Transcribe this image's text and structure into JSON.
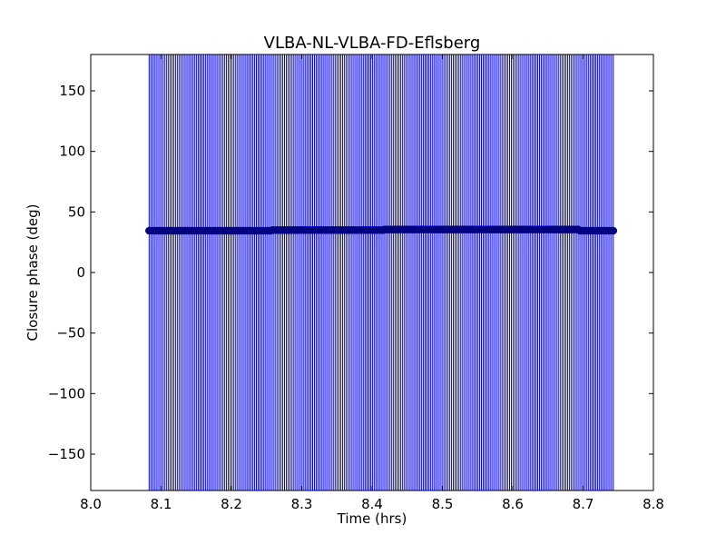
{
  "chart_data": {
    "type": "scatter",
    "title": "VLBA-NL-VLBA-FD-Eflsberg",
    "xlabel": "Time (hrs)",
    "ylabel": "Closure phase (deg)",
    "xlim": [
      8.0,
      8.8
    ],
    "ylim": [
      -180,
      180
    ],
    "x_ticks": [
      8.0,
      8.1,
      8.2,
      8.3,
      8.4,
      8.5,
      8.6,
      8.7,
      8.8
    ],
    "x_tick_labels": [
      "8.0",
      "8.1",
      "8.2",
      "8.3",
      "8.4",
      "8.5",
      "8.6",
      "8.7",
      "8.8"
    ],
    "y_ticks": [
      150,
      100,
      50,
      0,
      -50,
      -100,
      -150
    ],
    "y_tick_labels": [
      "150",
      "100",
      "50",
      "0",
      "−50",
      "−100",
      "−150"
    ],
    "grid": false,
    "series": [
      {
        "color": "#0000ff",
        "marker_color": "#000080",
        "error_bar_color": "#0000ff",
        "x_start": 8.083,
        "x_end": 8.743,
        "x_step": 0.0025,
        "error_lower": -180,
        "error_upper": 180,
        "segments": [
          {
            "x_from": 8.083,
            "x_to": 8.258,
            "y": 34.5
          },
          {
            "x_from": 8.258,
            "x_to": 8.418,
            "y": 35.0
          },
          {
            "x_from": 8.418,
            "x_to": 8.695,
            "y": 35.5
          },
          {
            "x_from": 8.695,
            "x_to": 8.743,
            "y": 34.5
          }
        ]
      }
    ]
  }
}
